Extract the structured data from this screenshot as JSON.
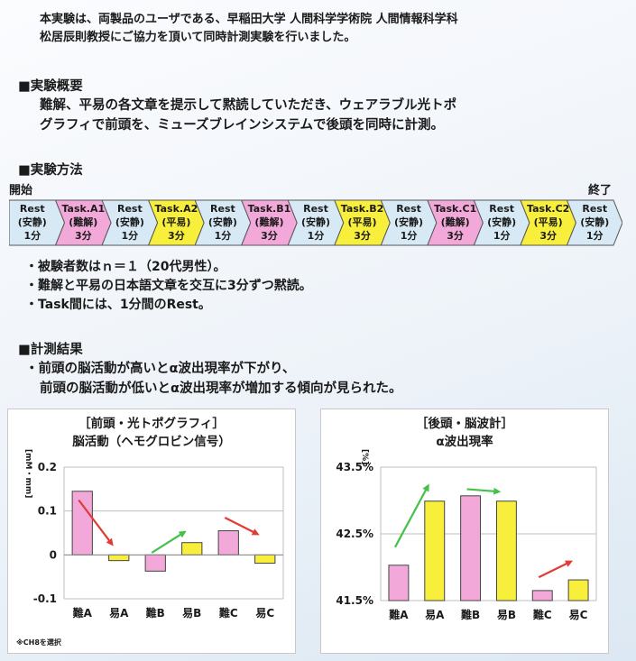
{
  "intro": {
    "line1": "本実験は、両製品のユーザである、早稲田大学 人間科学学術院 人間情報科学科",
    "line2": "松居辰則教授にご協力を頂いて同時計測実験を行いました。"
  },
  "overview": {
    "heading": "■実験概要",
    "line1": "難解、平易の各文章を提示して黙読していただき、ウェアラブル光トポ",
    "line2": "グラフィで前頭を、ミューズブレインシステムで後頭を同時に計測。"
  },
  "method": {
    "heading": "■実験方法",
    "start_label": "開始",
    "end_label": "終了",
    "steps": [
      {
        "name": "Rest",
        "cond": "(安静)",
        "dur": "1分",
        "kind": "rest"
      },
      {
        "name": "Task.A1",
        "cond": "(難解)",
        "dur": "3分",
        "kind": "hard"
      },
      {
        "name": "Rest",
        "cond": "(安静)",
        "dur": "1分",
        "kind": "rest"
      },
      {
        "name": "Task.A2",
        "cond": "(平易)",
        "dur": "3分",
        "kind": "easy"
      },
      {
        "name": "Rest",
        "cond": "(安静)",
        "dur": "1分",
        "kind": "rest"
      },
      {
        "name": "Task.B1",
        "cond": "(難解)",
        "dur": "3分",
        "kind": "hard"
      },
      {
        "name": "Rest",
        "cond": "(安静)",
        "dur": "1分",
        "kind": "rest"
      },
      {
        "name": "Task.B2",
        "cond": "(平易)",
        "dur": "3分",
        "kind": "easy"
      },
      {
        "name": "Rest",
        "cond": "(安静)",
        "dur": "1分",
        "kind": "rest"
      },
      {
        "name": "Task.C1",
        "cond": "(難解)",
        "dur": "3分",
        "kind": "hard"
      },
      {
        "name": "Rest",
        "cond": "(安静)",
        "dur": "1分",
        "kind": "rest"
      },
      {
        "name": "Task.C2",
        "cond": "(平易)",
        "dur": "3分",
        "kind": "easy"
      },
      {
        "name": "Rest",
        "cond": "(安静)",
        "dur": "1分",
        "kind": "rest"
      }
    ],
    "bullets": [
      "・被験者数はｎ＝１（20代男性）。",
      "・難解と平易の日本語文章を交互に3分ずつ黙読。",
      "・Task間には、1分間のRest。"
    ]
  },
  "results": {
    "heading": "■計測結果",
    "line1": "・前頭の脳活動が高いとα波出現率が下がり、",
    "line2": "前頭の脳活動が低いとα波出現率が増加する傾向が見られた。"
  },
  "colors": {
    "rest": "#d6e9f5",
    "hard": "#f2a8d8",
    "easy": "#f7ef3c",
    "arrow_down": "#e23b35",
    "arrow_up": "#45c04a"
  },
  "chart_data": [
    {
      "type": "bar",
      "title": "［前頭・光トポグラフィ］",
      "subtitle": "脳活動（ヘモグロビン信号）",
      "ylabel": "[mM・mm]",
      "categories": [
        "難A",
        "易A",
        "難B",
        "易B",
        "難C",
        "易C"
      ],
      "values": [
        0.145,
        -0.013,
        -0.037,
        0.028,
        0.055,
        -0.019
      ],
      "ylim": [
        -0.1,
        0.2
      ],
      "yticks": [
        "0.2",
        "0.1",
        "0",
        "-0.1"
      ],
      "yticks_values": [
        0.2,
        0.1,
        0,
        -0.1
      ],
      "grid": true,
      "arrows": [
        {
          "from_cat": 0,
          "to_cat": 1,
          "from": 0.125,
          "to": 0.02,
          "dir": "down"
        },
        {
          "from_cat": 2,
          "to_cat": 3,
          "from": 0.005,
          "to": 0.055,
          "dir": "up"
        },
        {
          "from_cat": 4,
          "to_cat": 5,
          "from": 0.085,
          "to": 0.045,
          "dir": "down"
        }
      ],
      "note": "※CH8を選択"
    },
    {
      "type": "bar",
      "title": "［後頭・脳波計］",
      "subtitle": "α波出現率",
      "ylabel": "[%]",
      "categories": [
        "難A",
        "易A",
        "難B",
        "易B",
        "難C",
        "易C"
      ],
      "values": [
        42.03,
        42.99,
        43.07,
        42.99,
        41.65,
        41.81
      ],
      "ylim": [
        41.5,
        43.5
      ],
      "yticks": [
        "43.5%",
        "42.5%",
        "41.5%"
      ],
      "yticks_values": [
        43.5,
        42.5,
        41.5
      ],
      "grid": true,
      "arrows": [
        {
          "from_cat": 0,
          "to_cat": 1,
          "from": 42.3,
          "to": 43.25,
          "dir": "up"
        },
        {
          "from_cat": 2,
          "to_cat": 3,
          "from": 43.17,
          "to": 43.13,
          "dir": "up"
        },
        {
          "from_cat": 4,
          "to_cat": 5,
          "from": 41.85,
          "to": 42.1,
          "dir": "down"
        }
      ]
    }
  ]
}
